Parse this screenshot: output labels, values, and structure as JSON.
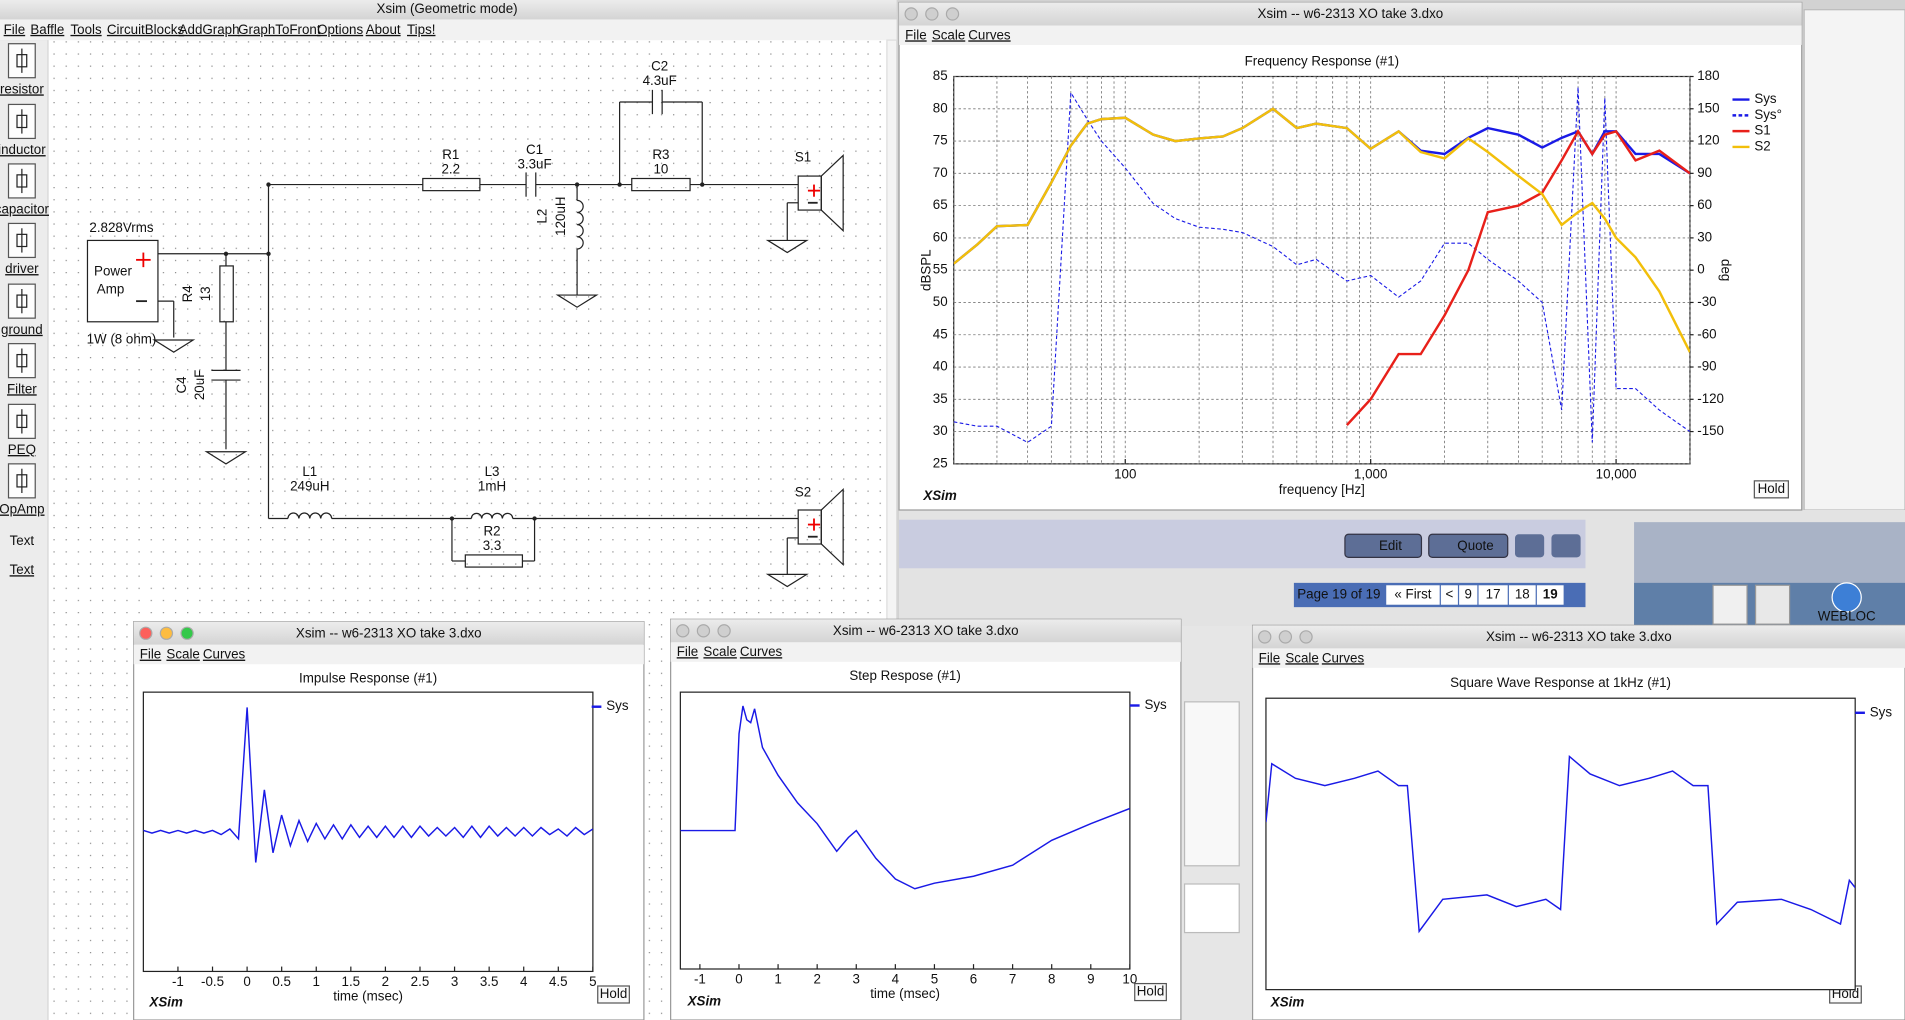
{
  "app": {
    "title": "Xsim (Geometric mode)",
    "menu": [
      "File",
      "Baffle",
      "Tools",
      "CircuitBlocks",
      "AddGraph",
      "GraphToFront",
      "Options",
      "About",
      "Tips!"
    ],
    "palette": [
      "resistor",
      "inductor",
      "capacitor",
      "driver",
      "ground",
      "Filter",
      "PEQ",
      "OpAmp",
      "Text"
    ]
  },
  "schematic": {
    "labels": [
      "C2",
      "4.3uF",
      "R1",
      "2.2",
      "C1",
      "3.3uF",
      "R3",
      "10",
      "S1",
      "L2",
      "120uH",
      "2.828Vrms",
      "Power",
      "Amp",
      "R4",
      "13",
      "1W (8 ohm)",
      "C4",
      "20uF",
      "L1",
      "249uH",
      "L3",
      "1mH",
      "R2",
      "3.3",
      "S2"
    ]
  },
  "windows": [
    {
      "title": "Xsim -- w6-2313 XO take 3.dxo",
      "menu": [
        "File",
        "Scale",
        "Curves"
      ],
      "brand": "XSim",
      "button": "Hold"
    },
    {
      "title": "Xsim -- w6-2313 XO take 3.dxo",
      "menu": [
        "File",
        "Scale",
        "Curves"
      ],
      "brand": "XSim",
      "button": "Hold"
    },
    {
      "title": "Xsim -- w6-2313 XO take 3.dxo",
      "menu": [
        "File",
        "Scale",
        "Curves"
      ],
      "brand": "XSim",
      "button": "Hold"
    },
    {
      "title": "Xsim -- w6-2313 XO take 3.dxo",
      "menu": [
        "File",
        "Scale",
        "Curves"
      ],
      "brand": "XSim",
      "button": "Hold"
    }
  ],
  "chart_data": [
    {
      "type": "line",
      "title": "Frequency Response (#1)",
      "x_label": "frequency [Hz]",
      "y_label": "dBSPL",
      "y2_label": "deg",
      "x_log": true,
      "xlim": [
        20,
        20000
      ],
      "xticks": [
        100,
        {
          "value": 1000,
          "label": "1,000"
        },
        {
          "value": 10000,
          "label": "10,000"
        }
      ],
      "xgrid": [
        20,
        30,
        40,
        50,
        60,
        70,
        80,
        90,
        100,
        200,
        300,
        400,
        500,
        600,
        700,
        800,
        900,
        1000,
        2000,
        3000,
        4000,
        5000,
        6000,
        7000,
        8000,
        9000,
        10000,
        20000
      ],
      "ylim": [
        25,
        85
      ],
      "yticks": [
        25,
        30,
        35,
        40,
        45,
        50,
        55,
        60,
        65,
        70,
        75,
        80,
        85
      ],
      "y2lim": [
        -180,
        180
      ],
      "y2ticks": [
        -150,
        -120,
        -90,
        -60,
        -30,
        0,
        30,
        60,
        90,
        120,
        150,
        180
      ],
      "grid": true,
      "legend": "right",
      "x": [
        20,
        25,
        30,
        40,
        50,
        60,
        70,
        80,
        100,
        130,
        160,
        200,
        250,
        300,
        400,
        500,
        600,
        800,
        1000,
        1300,
        1600,
        2000,
        2500,
        3000,
        4000,
        5000,
        6000,
        7000,
        8000,
        9000,
        10000,
        12000,
        15000,
        20000
      ],
      "series": [
        {
          "name": "Sys",
          "color": "#1a1ae6",
          "values": [
            56,
            59,
            61.8,
            62,
            68.6,
            74.3,
            77.7,
            78.4,
            78.6,
            76,
            75,
            75.4,
            75.7,
            77,
            80,
            77,
            77.7,
            77,
            73.8,
            76.5,
            73.5,
            73,
            75.5,
            77,
            76,
            74,
            75.5,
            76.5,
            73,
            76.5,
            76.5,
            73,
            73,
            70
          ]
        },
        {
          "name": "Sys°",
          "color": "#1a1ae6",
          "dashed": true,
          "axis": "y2",
          "values": [
            -141,
            -145,
            -145,
            -160,
            -145,
            165,
            140,
            120,
            95,
            62,
            48,
            40,
            38,
            35,
            22,
            5,
            10,
            -10,
            -5,
            -25,
            -10,
            25,
            25,
            10,
            -10,
            -30,
            -130,
            170,
            -160,
            160,
            -110,
            -110,
            -130,
            -150
          ]
        },
        {
          "name": "S1",
          "color": "#e8201a",
          "values": [
            null,
            null,
            null,
            null,
            null,
            null,
            null,
            null,
            null,
            null,
            null,
            null,
            null,
            null,
            null,
            null,
            null,
            31,
            35,
            42,
            42,
            48,
            55,
            64,
            65,
            67,
            72,
            76.5,
            73,
            76,
            76.5,
            72,
            73.5,
            70
          ]
        },
        {
          "name": "S2",
          "color": "#f2bf0a",
          "values": [
            56,
            59,
            61.8,
            62,
            68.6,
            74.3,
            77.7,
            78.4,
            78.6,
            76,
            75,
            75.4,
            75.7,
            77,
            80,
            77,
            77.7,
            77,
            73.8,
            76.5,
            73.3,
            72.3,
            75.4,
            73.3,
            69.6,
            66.8,
            62,
            64,
            65.4,
            63,
            60,
            57,
            51.7,
            42.3
          ]
        }
      ]
    },
    {
      "type": "line",
      "title": "Impulse Response (#1)",
      "x_label": "time (msec)",
      "xlim": [
        -1.5,
        5
      ],
      "xticks": [
        -1,
        -0.5,
        0,
        0.5,
        1,
        1.5,
        2,
        2.5,
        3,
        3.5,
        4,
        4.5,
        5
      ],
      "ylim": [
        -1,
        1
      ],
      "legend": "right",
      "x": [
        -1.5,
        -1.375,
        -1.25,
        -1.125,
        -1,
        -0.875,
        -0.75,
        -0.625,
        -0.5,
        -0.375,
        -0.25,
        -0.125,
        0,
        0.125,
        0.25,
        0.375,
        0.5,
        0.625,
        0.75,
        0.875,
        1,
        1.125,
        1.25,
        1.375,
        1.5,
        1.625,
        1.75,
        1.875,
        2,
        2.125,
        2.25,
        2.375,
        2.5,
        2.625,
        2.75,
        2.875,
        3,
        3.125,
        3.25,
        3.375,
        3.5,
        3.625,
        3.75,
        3.875,
        4,
        4.125,
        4.25,
        4.375,
        4.5,
        4.625,
        4.75,
        4.875,
        5
      ],
      "series": [
        {
          "name": "Sys",
          "color": "#1a1ae6",
          "values": [
            0.01,
            -0.01,
            0.01,
            -0.01,
            0.01,
            -0.01,
            0.01,
            -0.01,
            0.01,
            -0.02,
            0.02,
            -0.05,
            0.89,
            -0.22,
            0.3,
            -0.15,
            0.12,
            -0.1,
            0.08,
            -0.07,
            0.06,
            -0.05,
            0.05,
            -0.05,
            0.05,
            -0.04,
            0.04,
            -0.04,
            0.04,
            -0.04,
            0.04,
            -0.04,
            0.04,
            -0.03,
            0.03,
            -0.03,
            0.03,
            -0.04,
            0.04,
            -0.04,
            0.04,
            -0.03,
            0.03,
            -0.03,
            0.03,
            -0.03,
            0.03,
            -0.02,
            0.02,
            -0.03,
            0.03,
            -0.02,
            0.02
          ]
        }
      ]
    },
    {
      "type": "line",
      "title": "Step Respose (#1)",
      "x_label": "time (msec)",
      "xlim": [
        -1.5,
        10
      ],
      "xticks": [
        -1,
        0,
        1,
        2,
        3,
        4,
        5,
        6,
        7,
        8,
        9,
        10
      ],
      "ylim": [
        -1,
        1
      ],
      "legend": "right",
      "x": [
        -1.5,
        -0.1,
        0,
        0.1,
        0.2,
        0.3,
        0.4,
        0.6,
        1,
        1.5,
        2,
        2.5,
        2.8,
        3,
        3.5,
        4,
        4.5,
        5,
        6,
        7,
        8,
        9,
        10
      ],
      "series": [
        {
          "name": "Sys",
          "color": "#1a1ae6",
          "values": [
            0,
            0,
            0.7,
            0.9,
            0.8,
            0.78,
            0.88,
            0.6,
            0.4,
            0.2,
            0.05,
            -0.15,
            -0.05,
            0,
            -0.2,
            -0.35,
            -0.42,
            -0.38,
            -0.33,
            -0.25,
            -0.07,
            0.05,
            0.16
          ]
        }
      ]
    },
    {
      "type": "line",
      "title": "Square Wave Response at 1kHz (#1)",
      "xlim": [
        0,
        2
      ],
      "ylim": [
        -1,
        1
      ],
      "legend": "right",
      "x": [
        0,
        0.02,
        0.1,
        0.2,
        0.3,
        0.38,
        0.45,
        0.48,
        0.52,
        0.6,
        0.75,
        0.85,
        0.95,
        1.0,
        1.03,
        1.1,
        1.2,
        1.3,
        1.38,
        1.45,
        1.5,
        1.53,
        1.6,
        1.75,
        1.85,
        1.95,
        1.98,
        2.0
      ],
      "series": [
        {
          "name": "Sys",
          "color": "#1a1ae6",
          "values": [
            0.15,
            0.55,
            0.45,
            0.4,
            0.45,
            0.5,
            0.4,
            0.4,
            -0.6,
            -0.38,
            -0.35,
            -0.43,
            -0.38,
            -0.45,
            0.6,
            0.48,
            0.4,
            0.45,
            0.5,
            0.4,
            0.4,
            -0.55,
            -0.4,
            -0.38,
            -0.45,
            -0.55,
            -0.25,
            -0.3
          ]
        }
      ]
    }
  ],
  "forum": {
    "buttons": [
      "Edit",
      "Quote"
    ],
    "pager": {
      "label": "Page 19 of 19",
      "links": [
        "« First",
        "<",
        "9",
        "17",
        "18",
        "19"
      ]
    }
  },
  "desktop": {
    "icon": "WEBLOC"
  }
}
